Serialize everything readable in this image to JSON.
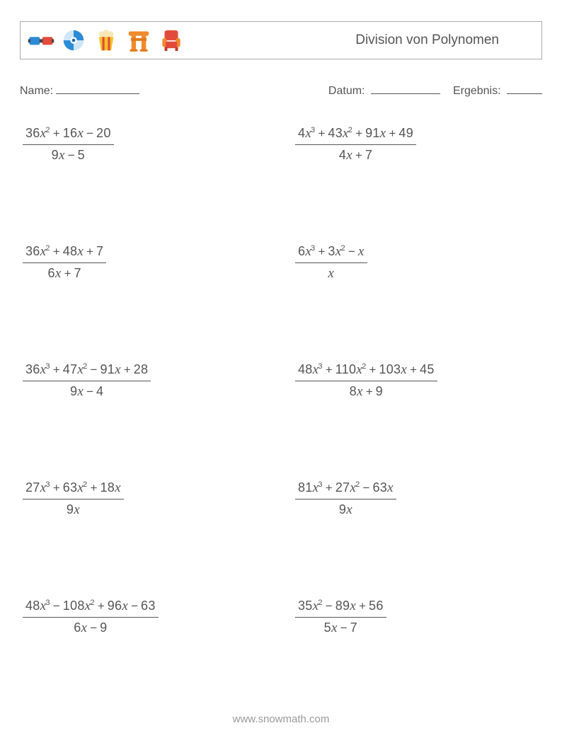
{
  "header": {
    "title": "Division von Polynomen",
    "icons": [
      "glasses-3d-icon",
      "disc-icon",
      "popcorn-icon",
      "torii-icon",
      "armchair-icon"
    ]
  },
  "info": {
    "name_label": "Name:",
    "date_label": "Datum:",
    "result_label": "Ergebnis:"
  },
  "colors": {
    "text": "#555555",
    "border": "#aaaaaa",
    "footer": "#999999",
    "background": "#ffffff",
    "icon_blue": "#2c8bd6",
    "icon_blue_dark": "#1b6bb0",
    "icon_yellow": "#f4c326",
    "icon_red": "#e24b3b",
    "icon_orange": "#f08a2c",
    "icon_cream": "#f6e7b4"
  },
  "typography": {
    "body_fontsize": 17,
    "title_fontsize": 19,
    "math_fontsize": 18,
    "footer_fontsize": 15
  },
  "problems": [
    {
      "num": "36x^2 + 16x − 20",
      "den": "9x − 5"
    },
    {
      "num": "4x^3 + 43x^2 + 91x + 49",
      "den": "4x + 7"
    },
    {
      "num": "36x^2 + 48x + 7",
      "den": "6x + 7"
    },
    {
      "num": "6x^3 + 3x^2 − x",
      "den": "x"
    },
    {
      "num": "36x^3 + 47x^2 − 91x + 28",
      "den": "9x − 4"
    },
    {
      "num": "48x^3 + 110x^2 + 103x + 45",
      "den": "8x + 9"
    },
    {
      "num": "27x^3 + 63x^2 + 18x",
      "den": "9x"
    },
    {
      "num": "81x^3 + 27x^2 − 63x",
      "den": "9x"
    },
    {
      "num": "48x^3 − 108x^2 + 96x − 63",
      "den": "6x − 9"
    },
    {
      "num": "35x^2 − 89x + 56",
      "den": "5x − 7"
    }
  ],
  "footer": "www.snowmath.com"
}
